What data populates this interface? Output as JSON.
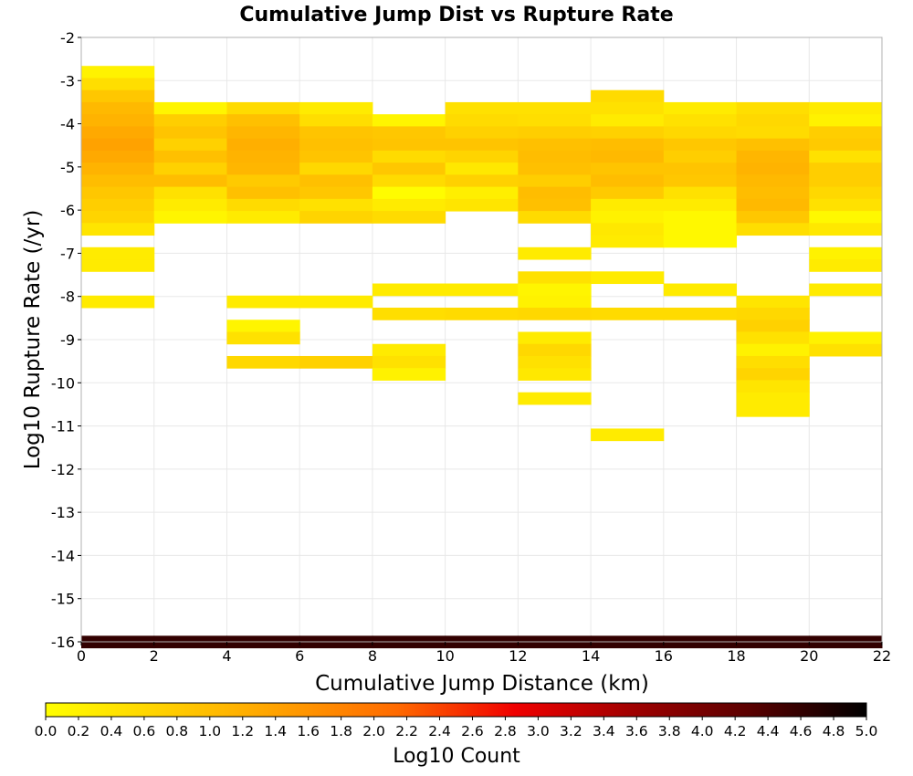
{
  "chart_data": {
    "type": "heatmap",
    "title": "Cumulative Jump Dist vs Rupture Rate",
    "xlabel": "Cumulative Jump Distance (km)",
    "ylabel": "Log10 Rupture Rate (/yr)",
    "xlim": [
      0,
      22
    ],
    "ylim": [
      -16,
      -2
    ],
    "x_ticks": [
      "0",
      "2",
      "4",
      "6",
      "8",
      "10",
      "12",
      "14",
      "16",
      "18",
      "20",
      "22"
    ],
    "y_ticks": [
      "-2",
      "-3",
      "-4",
      "-5",
      "-6",
      "-7",
      "-8",
      "-9",
      "-10",
      "-11",
      "-12",
      "-13",
      "-14",
      "-15",
      "-16"
    ],
    "grid": true,
    "x_bin_width": 2,
    "y_bin_width": 0.28,
    "colorbar": {
      "label": "Log10 Count",
      "range": [
        0,
        5
      ],
      "ticks": [
        "0.0",
        "0.2",
        "0.4",
        "0.6",
        "0.8",
        "1.0",
        "1.2",
        "1.4",
        "1.6",
        "1.8",
        "2.0",
        "2.2",
        "2.4",
        "2.6",
        "2.8",
        "3.0",
        "3.2",
        "3.4",
        "3.6",
        "3.8",
        "4.0",
        "4.2",
        "4.4",
        "4.6",
        "4.8",
        "5.0"
      ],
      "colors": [
        "#ffff00",
        "#ffd000",
        "#ffa000",
        "#ff6a00",
        "#f00000",
        "#a00000",
        "#5a0000",
        "#000000"
      ]
    },
    "cells": [
      {
        "x": 0,
        "y": -2.8,
        "v": 0.2
      },
      {
        "x": 0,
        "y": -3.08,
        "v": 0.5
      },
      {
        "x": 0,
        "y": -3.36,
        "v": 0.85
      },
      {
        "x": 0,
        "y": -3.64,
        "v": 1.05
      },
      {
        "x": 0,
        "y": -3.92,
        "v": 1.15
      },
      {
        "x": 0,
        "y": -4.2,
        "v": 1.3
      },
      {
        "x": 0,
        "y": -4.48,
        "v": 1.4
      },
      {
        "x": 0,
        "y": -4.76,
        "v": 1.3
      },
      {
        "x": 0,
        "y": -5.04,
        "v": 1.15
      },
      {
        "x": 0,
        "y": -5.32,
        "v": 1.0
      },
      {
        "x": 0,
        "y": -5.6,
        "v": 0.85
      },
      {
        "x": 0,
        "y": -5.88,
        "v": 0.75
      },
      {
        "x": 0,
        "y": -6.16,
        "v": 0.65
      },
      {
        "x": 0,
        "y": -6.44,
        "v": 0.4
      },
      {
        "x": 0,
        "y": -7.0,
        "v": 0.3
      },
      {
        "x": 0,
        "y": -7.28,
        "v": 0.3
      },
      {
        "x": 0,
        "y": -8.12,
        "v": 0.3
      },
      {
        "x": 2,
        "y": -3.64,
        "v": 0.15
      },
      {
        "x": 2,
        "y": -3.92,
        "v": 0.75
      },
      {
        "x": 2,
        "y": -4.2,
        "v": 0.9
      },
      {
        "x": 2,
        "y": -4.48,
        "v": 0.7
      },
      {
        "x": 2,
        "y": -4.76,
        "v": 0.95
      },
      {
        "x": 2,
        "y": -5.04,
        "v": 0.7
      },
      {
        "x": 2,
        "y": -5.32,
        "v": 1.0
      },
      {
        "x": 2,
        "y": -5.6,
        "v": 0.45
      },
      {
        "x": 2,
        "y": -5.88,
        "v": 0.3
      },
      {
        "x": 2,
        "y": -6.16,
        "v": 0.15
      },
      {
        "x": 4,
        "y": -3.64,
        "v": 0.55
      },
      {
        "x": 4,
        "y": -3.92,
        "v": 0.95
      },
      {
        "x": 4,
        "y": -4.2,
        "v": 1.1
      },
      {
        "x": 4,
        "y": -4.48,
        "v": 1.2
      },
      {
        "x": 4,
        "y": -4.76,
        "v": 1.15
      },
      {
        "x": 4,
        "y": -5.04,
        "v": 1.1
      },
      {
        "x": 4,
        "y": -5.32,
        "v": 0.8
      },
      {
        "x": 4,
        "y": -5.6,
        "v": 0.95
      },
      {
        "x": 4,
        "y": -5.88,
        "v": 0.55
      },
      {
        "x": 4,
        "y": -6.16,
        "v": 0.3
      },
      {
        "x": 4,
        "y": -8.12,
        "v": 0.3
      },
      {
        "x": 4,
        "y": -8.68,
        "v": 0.15
      },
      {
        "x": 4,
        "y": -8.96,
        "v": 0.45
      },
      {
        "x": 4,
        "y": -9.52,
        "v": 0.6
      },
      {
        "x": 6,
        "y": -3.64,
        "v": 0.3
      },
      {
        "x": 6,
        "y": -3.92,
        "v": 0.5
      },
      {
        "x": 6,
        "y": -4.2,
        "v": 0.9
      },
      {
        "x": 6,
        "y": -4.48,
        "v": 0.95
      },
      {
        "x": 6,
        "y": -4.76,
        "v": 0.9
      },
      {
        "x": 6,
        "y": -5.04,
        "v": 0.6
      },
      {
        "x": 6,
        "y": -5.32,
        "v": 0.95
      },
      {
        "x": 6,
        "y": -5.6,
        "v": 0.85
      },
      {
        "x": 6,
        "y": -5.88,
        "v": 0.45
      },
      {
        "x": 6,
        "y": -6.16,
        "v": 0.65
      },
      {
        "x": 6,
        "y": -8.12,
        "v": 0.3
      },
      {
        "x": 6,
        "y": -9.52,
        "v": 0.7
      },
      {
        "x": 8,
        "y": -3.92,
        "v": 0.15
      },
      {
        "x": 8,
        "y": -4.2,
        "v": 0.85
      },
      {
        "x": 8,
        "y": -4.48,
        "v": 0.9
      },
      {
        "x": 8,
        "y": -4.76,
        "v": 0.55
      },
      {
        "x": 8,
        "y": -5.04,
        "v": 0.85
      },
      {
        "x": 8,
        "y": -5.32,
        "v": 0.55
      },
      {
        "x": 8,
        "y": -5.6,
        "v": 0.05
      },
      {
        "x": 8,
        "y": -5.88,
        "v": 0.3
      },
      {
        "x": 8,
        "y": -6.16,
        "v": 0.55
      },
      {
        "x": 8,
        "y": -7.84,
        "v": 0.3
      },
      {
        "x": 8,
        "y": -8.4,
        "v": 0.5
      },
      {
        "x": 8,
        "y": -9.24,
        "v": 0.3
      },
      {
        "x": 8,
        "y": -9.52,
        "v": 0.45
      },
      {
        "x": 8,
        "y": -9.8,
        "v": 0.2
      },
      {
        "x": 10,
        "y": -3.64,
        "v": 0.45
      },
      {
        "x": 10,
        "y": -3.92,
        "v": 0.55
      },
      {
        "x": 10,
        "y": -4.2,
        "v": 0.7
      },
      {
        "x": 10,
        "y": -4.48,
        "v": 0.9
      },
      {
        "x": 10,
        "y": -4.76,
        "v": 0.65
      },
      {
        "x": 10,
        "y": -5.04,
        "v": 0.35
      },
      {
        "x": 10,
        "y": -5.32,
        "v": 0.7
      },
      {
        "x": 10,
        "y": -5.6,
        "v": 0.25
      },
      {
        "x": 10,
        "y": -5.88,
        "v": 0.4
      },
      {
        "x": 10,
        "y": -7.84,
        "v": 0.3
      },
      {
        "x": 10,
        "y": -8.4,
        "v": 0.55
      },
      {
        "x": 12,
        "y": -3.64,
        "v": 0.45
      },
      {
        "x": 12,
        "y": -3.92,
        "v": 0.5
      },
      {
        "x": 12,
        "y": -4.2,
        "v": 0.75
      },
      {
        "x": 12,
        "y": -4.48,
        "v": 0.95
      },
      {
        "x": 12,
        "y": -4.76,
        "v": 1.0
      },
      {
        "x": 12,
        "y": -5.04,
        "v": 0.95
      },
      {
        "x": 12,
        "y": -5.32,
        "v": 0.75
      },
      {
        "x": 12,
        "y": -5.6,
        "v": 1.0
      },
      {
        "x": 12,
        "y": -5.88,
        "v": 0.95
      },
      {
        "x": 12,
        "y": -6.16,
        "v": 0.55
      },
      {
        "x": 12,
        "y": -7.0,
        "v": 0.3
      },
      {
        "x": 12,
        "y": -7.56,
        "v": 0.45
      },
      {
        "x": 12,
        "y": -7.84,
        "v": 0.15
      },
      {
        "x": 12,
        "y": -8.12,
        "v": 0.2
      },
      {
        "x": 12,
        "y": -8.4,
        "v": 0.6
      },
      {
        "x": 12,
        "y": -8.96,
        "v": 0.3
      },
      {
        "x": 12,
        "y": -9.24,
        "v": 0.6
      },
      {
        "x": 12,
        "y": -9.52,
        "v": 0.45
      },
      {
        "x": 12,
        "y": -9.8,
        "v": 0.35
      },
      {
        "x": 12,
        "y": -10.36,
        "v": 0.3
      },
      {
        "x": 14,
        "y": -3.36,
        "v": 0.55
      },
      {
        "x": 14,
        "y": -3.64,
        "v": 0.45
      },
      {
        "x": 14,
        "y": -3.92,
        "v": 0.3
      },
      {
        "x": 14,
        "y": -4.2,
        "v": 0.7
      },
      {
        "x": 14,
        "y": -4.48,
        "v": 1.0
      },
      {
        "x": 14,
        "y": -4.76,
        "v": 1.05
      },
      {
        "x": 14,
        "y": -5.04,
        "v": 0.9
      },
      {
        "x": 14,
        "y": -5.32,
        "v": 1.0
      },
      {
        "x": 14,
        "y": -5.6,
        "v": 0.8
      },
      {
        "x": 14,
        "y": -5.88,
        "v": 0.3
      },
      {
        "x": 14,
        "y": -6.16,
        "v": 0.2
      },
      {
        "x": 14,
        "y": -6.44,
        "v": 0.35
      },
      {
        "x": 14,
        "y": -6.72,
        "v": 0.3
      },
      {
        "x": 14,
        "y": -7.56,
        "v": 0.3
      },
      {
        "x": 14,
        "y": -8.4,
        "v": 0.55
      },
      {
        "x": 14,
        "y": -11.2,
        "v": 0.3
      },
      {
        "x": 16,
        "y": -3.64,
        "v": 0.3
      },
      {
        "x": 16,
        "y": -3.92,
        "v": 0.45
      },
      {
        "x": 16,
        "y": -4.2,
        "v": 0.6
      },
      {
        "x": 16,
        "y": -4.48,
        "v": 0.85
      },
      {
        "x": 16,
        "y": -4.76,
        "v": 0.75
      },
      {
        "x": 16,
        "y": -5.04,
        "v": 0.9
      },
      {
        "x": 16,
        "y": -5.32,
        "v": 0.85
      },
      {
        "x": 16,
        "y": -5.6,
        "v": 0.45
      },
      {
        "x": 16,
        "y": -5.88,
        "v": 0.3
      },
      {
        "x": 16,
        "y": -6.16,
        "v": 0.1
      },
      {
        "x": 16,
        "y": -6.44,
        "v": 0.1
      },
      {
        "x": 16,
        "y": -6.72,
        "v": 0.1
      },
      {
        "x": 16,
        "y": -7.84,
        "v": 0.3
      },
      {
        "x": 16,
        "y": -8.4,
        "v": 0.55
      },
      {
        "x": 18,
        "y": -3.64,
        "v": 0.5
      },
      {
        "x": 18,
        "y": -3.92,
        "v": 0.6
      },
      {
        "x": 18,
        "y": -4.2,
        "v": 0.55
      },
      {
        "x": 18,
        "y": -4.48,
        "v": 0.95
      },
      {
        "x": 18,
        "y": -4.76,
        "v": 1.1
      },
      {
        "x": 18,
        "y": -5.04,
        "v": 1.15
      },
      {
        "x": 18,
        "y": -5.32,
        "v": 1.05
      },
      {
        "x": 18,
        "y": -5.6,
        "v": 1.0
      },
      {
        "x": 18,
        "y": -5.88,
        "v": 1.05
      },
      {
        "x": 18,
        "y": -6.16,
        "v": 0.85
      },
      {
        "x": 18,
        "y": -6.44,
        "v": 0.5
      },
      {
        "x": 18,
        "y": -8.12,
        "v": 0.4
      },
      {
        "x": 18,
        "y": -8.4,
        "v": 0.6
      },
      {
        "x": 18,
        "y": -8.68,
        "v": 0.7
      },
      {
        "x": 18,
        "y": -8.96,
        "v": 0.45
      },
      {
        "x": 18,
        "y": -9.24,
        "v": 0.2
      },
      {
        "x": 18,
        "y": -9.52,
        "v": 0.5
      },
      {
        "x": 18,
        "y": -9.8,
        "v": 0.65
      },
      {
        "x": 18,
        "y": -10.08,
        "v": 0.4
      },
      {
        "x": 18,
        "y": -10.36,
        "v": 0.3
      },
      {
        "x": 18,
        "y": -10.64,
        "v": 0.3
      },
      {
        "x": 20,
        "y": -3.64,
        "v": 0.3
      },
      {
        "x": 20,
        "y": -3.92,
        "v": 0.2
      },
      {
        "x": 20,
        "y": -4.2,
        "v": 0.75
      },
      {
        "x": 20,
        "y": -4.48,
        "v": 0.8
      },
      {
        "x": 20,
        "y": -4.76,
        "v": 0.45
      },
      {
        "x": 20,
        "y": -5.04,
        "v": 0.75
      },
      {
        "x": 20,
        "y": -5.32,
        "v": 0.75
      },
      {
        "x": 20,
        "y": -5.6,
        "v": 0.6
      },
      {
        "x": 20,
        "y": -5.88,
        "v": 0.45
      },
      {
        "x": 20,
        "y": -6.16,
        "v": 0.1
      },
      {
        "x": 20,
        "y": -6.44,
        "v": 0.35
      },
      {
        "x": 20,
        "y": -7.0,
        "v": 0.2
      },
      {
        "x": 20,
        "y": -7.28,
        "v": 0.3
      },
      {
        "x": 20,
        "y": -7.84,
        "v": 0.3
      },
      {
        "x": 20,
        "y": -8.96,
        "v": 0.2
      },
      {
        "x": 20,
        "y": -9.24,
        "v": 0.45
      },
      {
        "x": 0,
        "y": -16.0,
        "v": 4.6
      },
      {
        "x": 2,
        "y": -16.0,
        "v": 4.6
      },
      {
        "x": 4,
        "y": -16.0,
        "v": 4.6
      },
      {
        "x": 6,
        "y": -16.0,
        "v": 4.6
      },
      {
        "x": 8,
        "y": -16.0,
        "v": 4.6
      },
      {
        "x": 10,
        "y": -16.0,
        "v": 4.6
      },
      {
        "x": 12,
        "y": -16.0,
        "v": 4.6
      },
      {
        "x": 14,
        "y": -16.0,
        "v": 4.6
      },
      {
        "x": 16,
        "y": -16.0,
        "v": 4.6
      },
      {
        "x": 18,
        "y": -16.0,
        "v": 4.6
      },
      {
        "x": 20,
        "y": -16.0,
        "v": 4.6
      }
    ]
  }
}
